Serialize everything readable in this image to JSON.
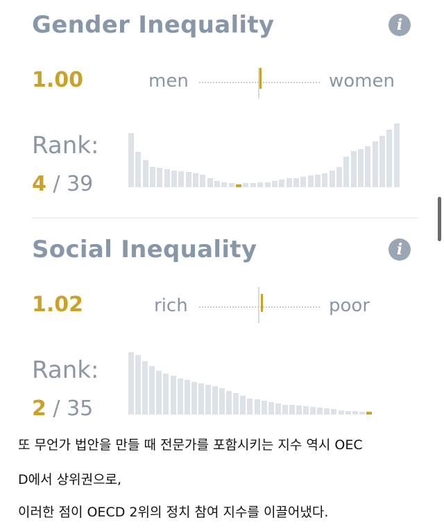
{
  "gender": {
    "title": "Gender Inequality",
    "info_icon": "info-icon",
    "score": "1.00",
    "left_label": "men",
    "right_label": "women",
    "marker_position": 0.5,
    "rank_label": "Rank:",
    "rank_num": "4",
    "rank_total": "/ 39",
    "distribution": [
      0.85,
      0.55,
      0.42,
      0.32,
      0.3,
      0.28,
      0.26,
      0.25,
      0.24,
      0.22,
      0.2,
      0.14,
      0.1,
      0.08,
      0.06,
      0.06,
      0.07,
      0.06,
      0.08,
      0.08,
      0.1,
      0.12,
      0.14,
      0.14,
      0.16,
      0.18,
      0.2,
      0.22,
      0.26,
      0.32,
      0.48,
      0.56,
      0.6,
      0.64,
      0.72,
      0.8,
      0.9,
      1.0
    ],
    "highlight_index": 15,
    "bar_color": "#dce2e8",
    "highlight_color": "#c9a227"
  },
  "social": {
    "title": "Social Inequality",
    "info_icon": "info-icon",
    "score": "1.02",
    "left_label": "rich",
    "right_label": "poor",
    "marker_position": 0.51,
    "rank_label": "Rank:",
    "rank_num": "2",
    "rank_total": "/ 35",
    "distribution": [
      1.0,
      0.95,
      0.86,
      0.78,
      0.7,
      0.66,
      0.62,
      0.58,
      0.55,
      0.52,
      0.5,
      0.48,
      0.45,
      0.42,
      0.38,
      0.34,
      0.3,
      0.26,
      0.24,
      0.22,
      0.2,
      0.18,
      0.16,
      0.15,
      0.14,
      0.13,
      0.12,
      0.11,
      0.1,
      0.09,
      0.07,
      0.06,
      0.05,
      0.04,
      0.04
    ],
    "highlight_index": 34,
    "bar_color": "#dce2e8",
    "highlight_color": "#c9a227"
  },
  "caption": {
    "line1": "또 무언가 법안을 만들 때 전문가를 포함시키는 지수 역시 OEC",
    "line2": "D에서 상위권으로,",
    "line3": "이러한 점이 OECD 2위의 정치 참여 지수를 이끌어냈다."
  },
  "colors": {
    "accent": "#c9a227",
    "title": "#8797a8",
    "muted": "#8a96a3"
  }
}
